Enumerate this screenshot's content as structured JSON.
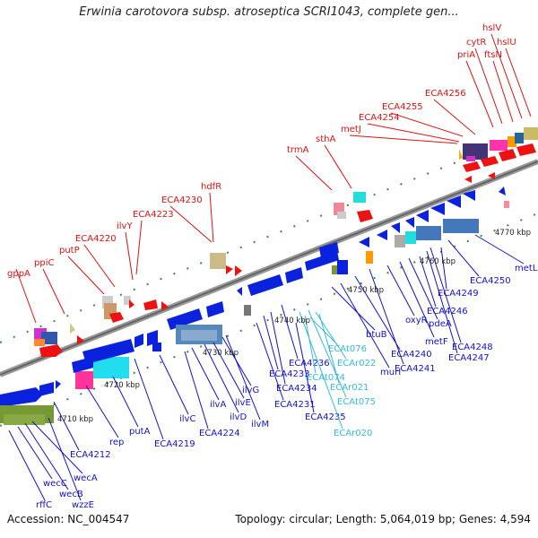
{
  "title": "Erwinia carotovora subsp. atroseptica SCRI1043, complete gen...",
  "footer": {
    "accession": "Accession: NC_004547",
    "summary": "Topology: circular; Length: 5,064,019 bp; Genes: 4,594"
  },
  "colors": {
    "red_label": "#dd1111",
    "blue_label": "#1111cc",
    "cyan_label": "#33bbdd",
    "backbone": "#888888",
    "tick": "#228822"
  },
  "kbp_labels": [
    "4710 kbp",
    "4720 kbp",
    "4730 kbp",
    "4740 kbp",
    "4750 kbp",
    "4760 kbp",
    "4770 kbp"
  ],
  "red_labels": [
    "gppA",
    "ppiC",
    "putP",
    "ECA4220",
    "ilvY",
    "ECA4223",
    "ECA4230",
    "hdfR",
    "trmA",
    "sthA",
    "metJ",
    "ECA4254",
    "ECA4255",
    "ECA4256",
    "priA",
    "cytR",
    "ftsN",
    "hslV",
    "hslU"
  ],
  "blue_labels": [
    "rffC",
    "wecC",
    "wecB",
    "wecA",
    "wzzE",
    "ECA4212",
    "rep",
    "putA",
    "ECA4219",
    "ilvC",
    "ECA4224",
    "ilvA",
    "ilvD",
    "ilvE",
    "ilvG",
    "ilvM",
    "ECA4231",
    "ECA4233",
    "ECA4234",
    "ECA4236",
    "ECA4235",
    "btuB",
    "murI",
    "ECA4240",
    "ECA4241",
    "oxyR",
    "metF",
    "pdeA",
    "ECA4246",
    "ECA4248",
    "ECA4247",
    "ECA4249",
    "ECA4250",
    "metL"
  ],
  "cyan_labels": [
    "ECAt076",
    "ECAr022",
    "ECAt074",
    "ECAr021",
    "ECAt075",
    "ECAr020"
  ]
}
